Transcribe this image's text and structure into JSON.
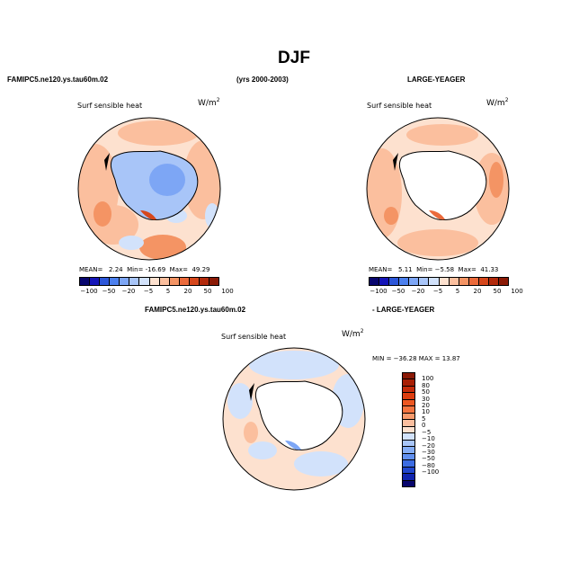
{
  "chart_data": {
    "type": "heatmap",
    "title": "DJF",
    "colormap_h": [
      "#08066e",
      "#1515b8",
      "#2d57d9",
      "#4c80ee",
      "#7da6f5",
      "#a8c5f8",
      "#d2e2fb",
      "#fde1cf",
      "#fbbf9e",
      "#f49464",
      "#eb6a3b",
      "#d6471c",
      "#b22a0c",
      "#8b1a06"
    ],
    "colormap_v": [
      "#8b1a06",
      "#a81f05",
      "#c52b0a",
      "#dd3e10",
      "#ec5722",
      "#f47440",
      "#f89a6c",
      "#fbbe9e",
      "#fde1cf",
      "#d2e2fb",
      "#a8c5f8",
      "#85adf5",
      "#6190ef",
      "#3c6ce2",
      "#2146cc",
      "#1024ae",
      "#08066e"
    ],
    "panels": [
      {
        "case": "FAMIPC5.ne120.ys.tau60m.02",
        "variable": "Surf sensible heat",
        "units_base": "W/m",
        "units_exp": "2",
        "mean_label": "MEAN=",
        "mean": "2.24",
        "min_label": "Min=",
        "min": "-16.69",
        "max_label": "Max=",
        "max": "49.29",
        "ticks": [
          "−100",
          "−50",
          "−20",
          "−5",
          "5",
          "20",
          "50",
          "100"
        ]
      },
      {
        "case": "LARGE-YEAGER",
        "variable": "Surf sensible heat",
        "units_base": "W/m",
        "units_exp": "2",
        "mean_label": "MEAN=",
        "mean": "5.11",
        "min_label": "Min=",
        "min": "−5.58",
        "max_label": "Max=",
        "max": "41.33",
        "ticks": [
          "−100",
          "−50",
          "−20",
          "−5",
          "5",
          "20",
          "50",
          "100"
        ]
      },
      {
        "case_left": "FAMIPC5.ne120.ys.tau60m.02",
        "case_right": "- LARGE-YEAGER",
        "variable": "Surf sensible heat",
        "units_base": "W/m",
        "units_exp": "2",
        "minmax_text": "MIN = −36.28  MAX =  13.87",
        "ticks": [
          "100",
          "80",
          "50",
          "30",
          "20",
          "10",
          "5",
          "0",
          "−5",
          "−10",
          "−20",
          "−30",
          "−50",
          "−80",
          "−100"
        ]
      }
    ],
    "period": "(yrs 2000-2003)"
  }
}
